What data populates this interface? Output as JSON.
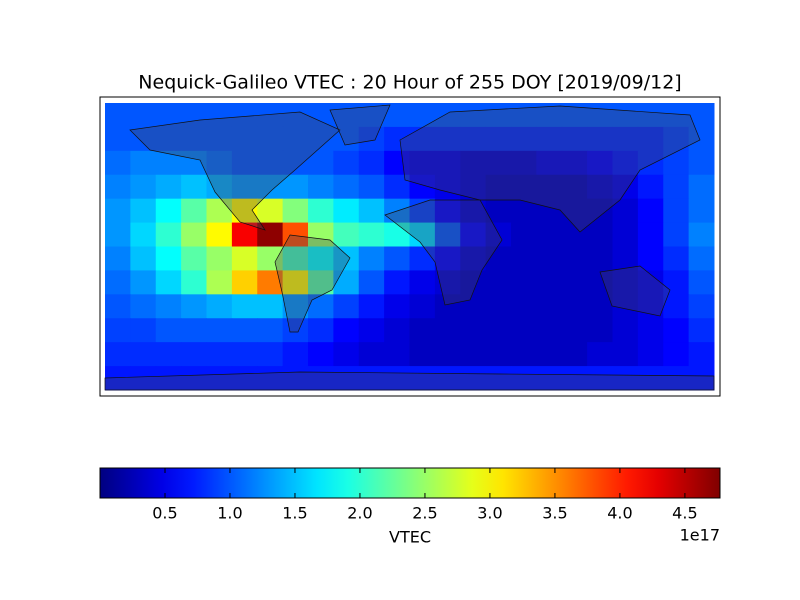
{
  "chart_data": {
    "type": "heatmap",
    "title": "Nequick-Galileo VTEC : 20 Hour of 255 DOY [2019/09/12]",
    "colormap": "jet",
    "z": [
      [
        1.0,
        1.0,
        1.0,
        1.0,
        1.0,
        1.0,
        1.0,
        1.0,
        1.0,
        1.0,
        1.0,
        1.0,
        1.0,
        1.0,
        1.0,
        1.0,
        1.0,
        1.0,
        1.0,
        1.0,
        1.0,
        1.0,
        1.0,
        1.0
      ],
      [
        1.0,
        1.0,
        1.0,
        1.0,
        1.0,
        1.0,
        1.0,
        1.0,
        1.0,
        1.0,
        0.9,
        0.8,
        0.8,
        0.8,
        0.8,
        0.8,
        0.8,
        0.8,
        0.8,
        0.8,
        0.8,
        0.8,
        0.9,
        1.0
      ],
      [
        1.1,
        1.2,
        1.2,
        1.2,
        1.1,
        1.0,
        1.0,
        1.0,
        1.0,
        0.9,
        0.8,
        0.6,
        0.5,
        0.5,
        0.4,
        0.4,
        0.4,
        0.5,
        0.5,
        0.6,
        0.7,
        0.8,
        0.9,
        1.0
      ],
      [
        1.2,
        1.3,
        1.4,
        1.5,
        1.4,
        1.3,
        1.3,
        1.3,
        1.2,
        1.1,
        1.0,
        0.8,
        0.6,
        0.5,
        0.4,
        0.3,
        0.3,
        0.3,
        0.3,
        0.4,
        0.5,
        0.7,
        0.9,
        1.1
      ],
      [
        1.3,
        1.5,
        1.8,
        2.2,
        2.6,
        3.0,
        2.8,
        2.4,
        2.0,
        1.7,
        1.5,
        1.2,
        0.9,
        0.6,
        0.4,
        0.3,
        0.3,
        0.3,
        0.3,
        0.3,
        0.4,
        0.6,
        0.9,
        1.1
      ],
      [
        1.3,
        1.6,
        2.0,
        2.5,
        3.0,
        4.2,
        4.7,
        3.8,
        2.5,
        2.1,
        2.0,
        1.9,
        1.6,
        1.0,
        0.6,
        0.4,
        0.3,
        0.3,
        0.3,
        0.3,
        0.4,
        0.6,
        0.9,
        1.2
      ],
      [
        1.2,
        1.5,
        1.8,
        2.2,
        2.5,
        2.8,
        2.5,
        2.1,
        1.8,
        1.5,
        1.2,
        1.0,
        0.8,
        0.6,
        0.4,
        0.3,
        0.3,
        0.3,
        0.3,
        0.3,
        0.4,
        0.6,
        0.8,
        1.1
      ],
      [
        1.1,
        1.3,
        1.6,
        2.0,
        2.6,
        3.2,
        3.6,
        3.0,
        2.2,
        1.4,
        1.0,
        0.7,
        0.5,
        0.4,
        0.3,
        0.3,
        0.3,
        0.3,
        0.3,
        0.3,
        0.4,
        0.5,
        0.7,
        1.0
      ],
      [
        1.0,
        1.1,
        1.2,
        1.3,
        1.4,
        1.5,
        1.5,
        1.3,
        1.1,
        0.9,
        0.7,
        0.5,
        0.4,
        0.3,
        0.3,
        0.3,
        0.3,
        0.3,
        0.3,
        0.3,
        0.4,
        0.5,
        0.7,
        0.9
      ],
      [
        0.9,
        0.9,
        1.0,
        1.0,
        1.0,
        1.0,
        1.0,
        0.9,
        0.8,
        0.6,
        0.5,
        0.4,
        0.3,
        0.3,
        0.3,
        0.3,
        0.3,
        0.3,
        0.3,
        0.3,
        0.4,
        0.5,
        0.6,
        0.8
      ],
      [
        0.8,
        0.8,
        0.8,
        0.8,
        0.8,
        0.8,
        0.8,
        0.7,
        0.6,
        0.5,
        0.4,
        0.4,
        0.3,
        0.3,
        0.3,
        0.3,
        0.3,
        0.3,
        0.3,
        0.4,
        0.4,
        0.5,
        0.6,
        0.7
      ],
      [
        0.7,
        0.7,
        0.7,
        0.7,
        0.7,
        0.7,
        0.7,
        0.7,
        0.7,
        0.7,
        0.7,
        0.7,
        0.7,
        0.7,
        0.7,
        0.7,
        0.7,
        0.7,
        0.7,
        0.7,
        0.7,
        0.7,
        0.7,
        0.7
      ]
    ],
    "clim": [
      0,
      4.77
    ],
    "colorbar_ticks": [
      0.5,
      {
        "value": 1,
        "label": "1.0"
      },
      1.5,
      {
        "value": 2,
        "label": "2.0"
      },
      2.5,
      {
        "value": 3,
        "label": "3.0"
      },
      3.5,
      {
        "value": 4,
        "label": "4.0"
      },
      4.5
    ],
    "colorbar_label": "VTEC",
    "colorbar_offset": "1e17"
  }
}
